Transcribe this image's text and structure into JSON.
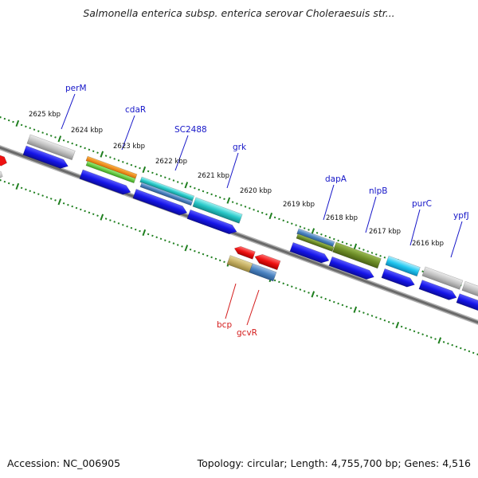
{
  "header": {
    "title": "Salmonella enterica subsp. enterica serovar Choleraesuis str..."
  },
  "footer": {
    "accession": "Accession: NC_006905",
    "topology": "Topology: circular; Length: 4,755,700 bp; Genes: 4,516"
  },
  "colors": {
    "backbone": "#7a7a7a",
    "ticks": "#1f7f1f",
    "feature_blue": "#1010e0",
    "feature_red": "#ee1111",
    "label_blue": "#1515c8",
    "label_red": "#d41c1c"
  },
  "scale_labels": [
    "2625 kbp",
    "2624 kbp",
    "2623 kbp",
    "2622 kbp",
    "2621 kbp",
    "2620 kbp",
    "2619 kbp",
    "2618 kbp",
    "2617 kbp",
    "2616 kbp"
  ],
  "gene_labels_forward": [
    "perM",
    "cdaR",
    "SC2488",
    "grk",
    "dapA",
    "nlpB",
    "purC",
    "ypfJ"
  ],
  "gene_labels_reverse": [
    "bcp",
    "gcvR"
  ]
}
